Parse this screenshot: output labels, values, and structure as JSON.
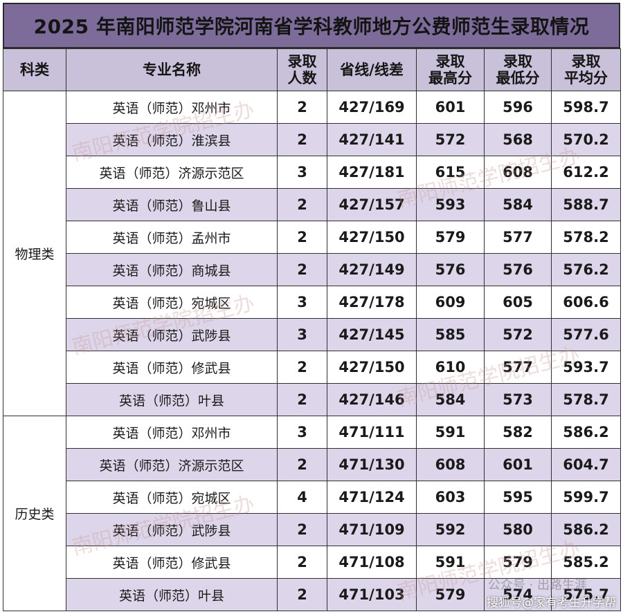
{
  "title": "2025 年南阳师范学院河南省学科教师地方公费师范生录取情况",
  "headers": {
    "category": "科类",
    "major": "专业名称",
    "count": [
      "录取",
      "人数"
    ],
    "line": "省线/线差",
    "max": [
      "录取",
      "最高分"
    ],
    "min": [
      "录取",
      "最低分"
    ],
    "avg": [
      "录取",
      "平均分"
    ]
  },
  "groups": [
    {
      "category": "物理类",
      "rows": [
        {
          "major": "英语（师范）邓州市",
          "count": "2",
          "line": "427/169",
          "max": "601",
          "min": "596",
          "avg": "598.7"
        },
        {
          "major": "英语（师范）淮滨县",
          "count": "2",
          "line": "427/141",
          "max": "572",
          "min": "568",
          "avg": "570.2"
        },
        {
          "major": "英语（师范）济源示范区",
          "count": "3",
          "line": "427/181",
          "max": "615",
          "min": "608",
          "avg": "612.2"
        },
        {
          "major": "英语（师范）鲁山县",
          "count": "2",
          "line": "427/157",
          "max": "593",
          "min": "584",
          "avg": "588.7"
        },
        {
          "major": "英语（师范）孟州市",
          "count": "2",
          "line": "427/150",
          "max": "579",
          "min": "577",
          "avg": "578.2"
        },
        {
          "major": "英语（师范）商城县",
          "count": "2",
          "line": "427/149",
          "max": "576",
          "min": "576",
          "avg": "576.2"
        },
        {
          "major": "英语（师范）宛城区",
          "count": "3",
          "line": "427/178",
          "max": "609",
          "min": "605",
          "avg": "606.6"
        },
        {
          "major": "英语（师范）武陟县",
          "count": "3",
          "line": "427/145",
          "max": "585",
          "min": "572",
          "avg": "577.6"
        },
        {
          "major": "英语（师范）修武县",
          "count": "2",
          "line": "427/150",
          "max": "610",
          "min": "577",
          "avg": "593.7"
        },
        {
          "major": "英语（师范）叶县",
          "count": "2",
          "line": "427/146",
          "max": "584",
          "min": "573",
          "avg": "578.7"
        }
      ]
    },
    {
      "category": "历史类",
      "rows": [
        {
          "major": "英语（师范）邓州市",
          "count": "3",
          "line": "471/111",
          "max": "591",
          "min": "582",
          "avg": "586.2"
        },
        {
          "major": "英语（师范）济源示范区",
          "count": "2",
          "line": "471/130",
          "max": "608",
          "min": "601",
          "avg": "604.7"
        },
        {
          "major": "英语（师范）宛城区",
          "count": "4",
          "line": "471/124",
          "max": "603",
          "min": "595",
          "avg": "599.7"
        },
        {
          "major": "英语（师范）武陟县",
          "count": "2",
          "line": "471/109",
          "max": "592",
          "min": "580",
          "avg": "586.2"
        },
        {
          "major": "英语（师范）修武县",
          "count": "2",
          "line": "471/108",
          "max": "591",
          "min": "579",
          "avg": "585.2"
        },
        {
          "major": "英语（师范）叶县",
          "count": "2",
          "line": "471/103",
          "max": "579",
          "min": "574",
          "avg": "575.7"
        }
      ]
    }
  ],
  "watermark": "南阳师范学院招生办",
  "credit_overlay": "公众号 · 出路生涯",
  "credit": "搜狐号@家有考生升学帮",
  "colors": {
    "title_bg": "#7d6b9a",
    "header_bg": "#c9c0d9",
    "alt_row_bg": "#ddd6ea"
  }
}
